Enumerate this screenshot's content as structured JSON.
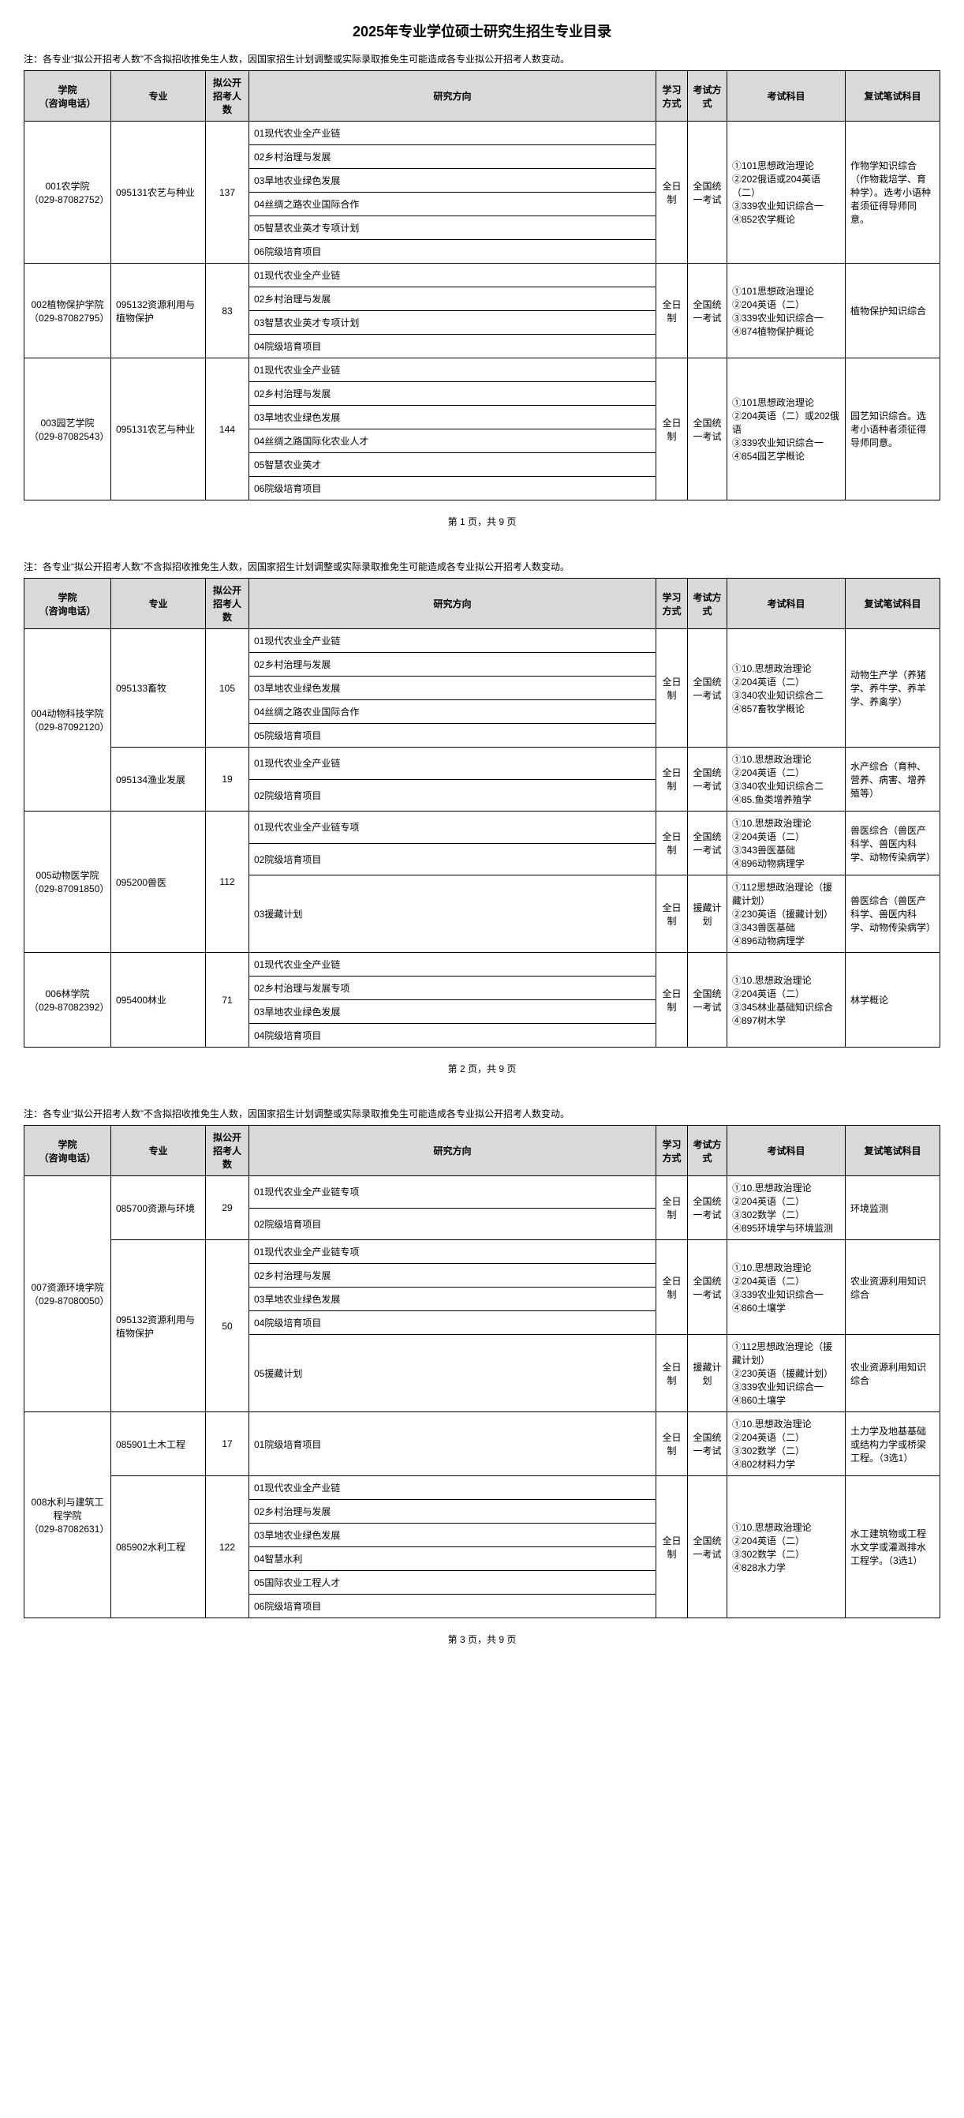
{
  "doc_title": "2025年专业学位硕士研究生招生专业目录",
  "note_text": "注：各专业“拟公开招考人数”不含拟招收推免生人数，因国家招生计划调整或实际录取推免生可能造成各专业拟公开招考人数变动。",
  "columns": {
    "college": "学院\n（咨询电话）",
    "major": "专业",
    "quota": "拟公开招考人数",
    "direction": "研究方向",
    "study_mode": "学习方式",
    "exam_mode": "考试方式",
    "subjects": "考试科目",
    "retest": "复试笔试科目"
  },
  "pagers": {
    "p1": "第 1 页，共 9 页",
    "p2": "第 2 页，共 9 页",
    "p3": "第 3 页，共 9 页"
  },
  "pages": [
    {
      "colleges": [
        {
          "name": "001农学院\n（029-87082752）",
          "majors": [
            {
              "name": "095131农艺与种业",
              "quota": "137",
              "blocks": [
                {
                  "directions": [
                    "01现代农业全产业链",
                    "02乡村治理与发展",
                    "03旱地农业绿色发展",
                    "04丝绸之路农业国际合作",
                    "05智慧农业英才专项计划",
                    "06院级培育项目"
                  ],
                  "study_mode": "全日制",
                  "exam_mode": "全国统一考试",
                  "subjects": "①101思想政治理论\n②202俄语或204英语（二）\n③339农业知识综合一\n④852农学概论",
                  "retest": "作物学知识综合（作物栽培学、育种学）。选考小语种者须征得导师同意。"
                }
              ]
            }
          ]
        },
        {
          "name": "002植物保护学院\n（029-87082795）",
          "majors": [
            {
              "name": "095132资源利用与植物保护",
              "quota": "83",
              "blocks": [
                {
                  "directions": [
                    "01现代农业全产业链",
                    "02乡村治理与发展",
                    "03智慧农业英才专项计划",
                    "04院级培育项目"
                  ],
                  "study_mode": "全日制",
                  "exam_mode": "全国统一考试",
                  "subjects": "①101思想政治理论\n②204英语（二）\n③339农业知识综合一\n④874植物保护概论",
                  "retest": "植物保护知识综合"
                }
              ]
            }
          ]
        },
        {
          "name": "003园艺学院\n（029-87082543）",
          "majors": [
            {
              "name": "095131农艺与种业",
              "quota": "144",
              "blocks": [
                {
                  "directions": [
                    "01现代农业全产业链",
                    "02乡村治理与发展",
                    "03旱地农业绿色发展",
                    "04丝绸之路国际化农业人才",
                    "05智慧农业英才",
                    "06院级培育项目"
                  ],
                  "study_mode": "全日制",
                  "exam_mode": "全国统一考试",
                  "subjects": "①101思想政治理论\n②204英语（二）或202俄语\n③339农业知识综合一\n④854园艺学概论",
                  "retest": "园艺知识综合。选考小语种者须征得导师同意。"
                }
              ]
            }
          ]
        }
      ]
    },
    {
      "colleges": [
        {
          "name": "004动物科技学院\n（029-87092120）",
          "majors": [
            {
              "name": "095133畜牧",
              "quota": "105",
              "blocks": [
                {
                  "directions": [
                    "01现代农业全产业链",
                    "02乡村治理与发展",
                    "03旱地农业绿色发展",
                    "04丝绸之路农业国际合作",
                    "05院级培育项目"
                  ],
                  "study_mode": "全日制",
                  "exam_mode": "全国统一考试",
                  "subjects": "①10.思想政治理论\n②204英语（二）\n③340农业知识综合二\n④857畜牧学概论",
                  "retest": "动物生产学（养猪学、养牛学、养羊学、养禽学）"
                }
              ]
            },
            {
              "name": "095134渔业发展",
              "quota": "19",
              "blocks": [
                {
                  "directions": [
                    "01现代农业全产业链",
                    "02院级培育项目"
                  ],
                  "study_mode": "全日制",
                  "exam_mode": "全国统一考试",
                  "subjects": "①10.思想政治理论\n②204英语（二）\n③340农业知识综合二\n④85.鱼类增养殖学",
                  "retest": "水产综合（育种、营养、病害、增养殖等）"
                }
              ]
            }
          ]
        },
        {
          "name": "005动物医学院\n（029-87091850）",
          "majors": [
            {
              "name": "095200兽医",
              "quota": "112",
              "blocks": [
                {
                  "directions": [
                    "01现代农业全产业链专项",
                    "02院级培育项目"
                  ],
                  "study_mode": "全日制",
                  "exam_mode": "全国统一考试",
                  "subjects": "①10.思想政治理论\n②204英语（二）\n③343兽医基础\n④896动物病理学",
                  "retest": "兽医综合（兽医产科学、兽医内科学、动物传染病学）"
                },
                {
                  "directions": [
                    "03援藏计划"
                  ],
                  "study_mode": "全日制",
                  "exam_mode": "援藏计划",
                  "subjects": "①112思想政治理论（援藏计划）\n②230英语（援藏计划）\n③343兽医基础\n④896动物病理学",
                  "retest": "兽医综合（兽医产科学、兽医内科学、动物传染病学）"
                }
              ]
            }
          ]
        },
        {
          "name": "006林学院\n（029-87082392）",
          "majors": [
            {
              "name": "095400林业",
              "quota": "71",
              "blocks": [
                {
                  "directions": [
                    "01现代农业全产业链",
                    "02乡村治理与发展专项",
                    "03旱地农业绿色发展",
                    "04院级培育项目"
                  ],
                  "study_mode": "全日制",
                  "exam_mode": "全国统一考试",
                  "subjects": "①10.思想政治理论\n②204英语（二）\n③345林业基础知识综合\n④897树木学",
                  "retest": "林学概论"
                }
              ]
            }
          ]
        }
      ]
    },
    {
      "colleges": [
        {
          "name": "007资源环境学院\n（029-87080050）",
          "majors": [
            {
              "name": "085700资源与环境",
              "quota": "29",
              "blocks": [
                {
                  "directions": [
                    "01现代农业全产业链专项",
                    "02院级培育项目"
                  ],
                  "study_mode": "全日制",
                  "exam_mode": "全国统一考试",
                  "subjects": "①10.思想政治理论\n②204英语（二）\n③302数学（二）\n④895环境学与环境监测",
                  "retest": "环境监测"
                }
              ]
            },
            {
              "name": "095132资源利用与植物保护",
              "quota": "50",
              "blocks": [
                {
                  "directions": [
                    "01现代农业全产业链专项",
                    "02乡村治理与发展",
                    "03旱地农业绿色发展",
                    "04院级培育项目"
                  ],
                  "study_mode": "全日制",
                  "exam_mode": "全国统一考试",
                  "subjects": "①10.思想政治理论\n②204英语（二）\n③339农业知识综合一\n④860土壤学",
                  "retest": "农业资源利用知识综合"
                },
                {
                  "directions": [
                    "05援藏计划"
                  ],
                  "study_mode": "全日制",
                  "exam_mode": "援藏计划",
                  "subjects": "①112思想政治理论（援藏计划）\n②230英语（援藏计划）\n③339农业知识综合一\n④860土壤学",
                  "retest": "农业资源利用知识综合"
                }
              ]
            }
          ]
        },
        {
          "name": "008水利与建筑工程学院\n（029-87082631）",
          "majors": [
            {
              "name": "085901土木工程",
              "quota": "17",
              "blocks": [
                {
                  "directions": [
                    "01院级培育项目"
                  ],
                  "study_mode": "全日制",
                  "exam_mode": "全国统一考试",
                  "subjects": "①10.思想政治理论\n②204英语（二）\n③302数学（二）\n④802材料力学",
                  "retest": "土力学及地基基础或结构力学或桥梁工程。（3选1）"
                }
              ]
            },
            {
              "name": "085902水利工程",
              "quota": "122",
              "blocks": [
                {
                  "directions": [
                    "01现代农业全产业链",
                    "02乡村治理与发展",
                    "03旱地农业绿色发展",
                    "04智慧水利",
                    "05国际农业工程人才",
                    "06院级培育项目"
                  ],
                  "study_mode": "全日制",
                  "exam_mode": "全国统一考试",
                  "subjects": "①10.思想政治理论\n②204英语（二）\n③302数学（二）\n④828水力学",
                  "retest": "水工建筑物或工程水文学或灌溉排水工程学。（3选1）"
                }
              ]
            }
          ]
        }
      ]
    }
  ]
}
